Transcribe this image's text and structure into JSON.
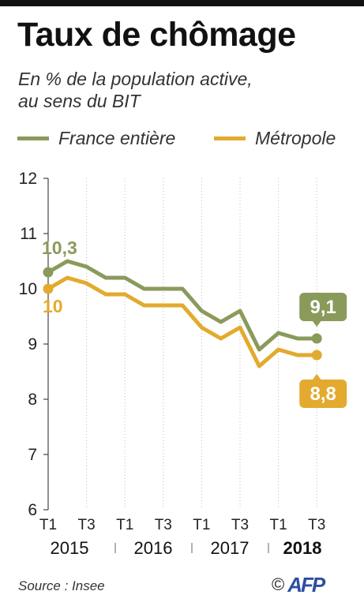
{
  "header": {
    "title": "Taux de chômage",
    "subtitle_line1": "En % de la population active,",
    "subtitle_line2": "au sens du BIT"
  },
  "colors": {
    "france_entiere": "#8a9a5b",
    "metropole": "#e2aa2e",
    "grid": "#bbbbbb",
    "axis": "#222222"
  },
  "legend": {
    "france_entiere": "France entière",
    "metropole": "Métropole"
  },
  "chart_data": {
    "type": "line",
    "title": "Taux de chômage",
    "subtitle": "En % de la population active, au sens du BIT",
    "x_tick_labels": [
      "T1",
      "T3",
      "T1",
      "T3",
      "T1",
      "T3",
      "T1",
      "T3"
    ],
    "year_labels": [
      "2015",
      "2016",
      "2017",
      "2018"
    ],
    "quarters": [
      "2015 T1",
      "2015 T2",
      "2015 T3",
      "2015 T4",
      "2016 T1",
      "2016 T2",
      "2016 T3",
      "2016 T4",
      "2017 T1",
      "2017 T2",
      "2017 T3",
      "2017 T4",
      "2018 T1",
      "2018 T2",
      "2018 T3"
    ],
    "series": [
      {
        "name": "France entière",
        "color": "#8a9a5b",
        "values": [
          10.3,
          10.5,
          10.4,
          10.2,
          10.2,
          10.0,
          10.0,
          10.0,
          9.6,
          9.4,
          9.6,
          8.9,
          9.2,
          9.1,
          9.1
        ]
      },
      {
        "name": "Métropole",
        "color": "#e2aa2e",
        "values": [
          10.0,
          10.2,
          10.1,
          9.9,
          9.9,
          9.7,
          9.7,
          9.7,
          9.3,
          9.1,
          9.3,
          8.6,
          8.9,
          8.8,
          8.8
        ]
      }
    ],
    "yticks": [
      6,
      7,
      8,
      9,
      10,
      11,
      12
    ],
    "ylim": [
      6,
      12
    ],
    "grid": "vertical dotted",
    "legend_position": "top",
    "annotations": {
      "france_start": "10,3",
      "metro_start": "10",
      "france_end": "9,1",
      "metro_end": "8,8"
    }
  },
  "footer": {
    "source": "Source : Insee",
    "copyright": "©",
    "agency": "AFP"
  }
}
